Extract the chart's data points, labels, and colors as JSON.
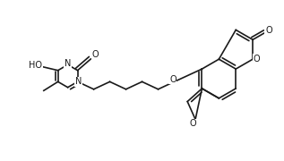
{
  "bg_color": "#ffffff",
  "line_color": "#1a1a1a",
  "line_width": 1.2,
  "figsize": [
    3.17,
    1.8
  ],
  "dpi": 100,
  "xlim": [
    0,
    317
  ],
  "ylim": [
    0,
    180
  ]
}
